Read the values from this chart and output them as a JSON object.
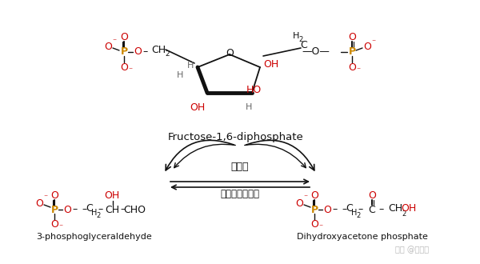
{
  "bg_color": "#ffffff",
  "fig_width": 6.0,
  "fig_height": 3.3,
  "dpi": 100,
  "red": "#cc0000",
  "orange": "#cc8800",
  "black": "#111111",
  "gray": "#666666",
  "fructose_label": "Fructose-1,6-diphosphate",
  "left_label": "3-phosphoglyceraldehyde",
  "right_label": "Dihydroxyacetone phosphate",
  "enzyme_top": "醉缩酶",
  "enzyme_bottom": "磷酸丙糖异构酶",
  "watermark": "知乎 @垃圾桶"
}
